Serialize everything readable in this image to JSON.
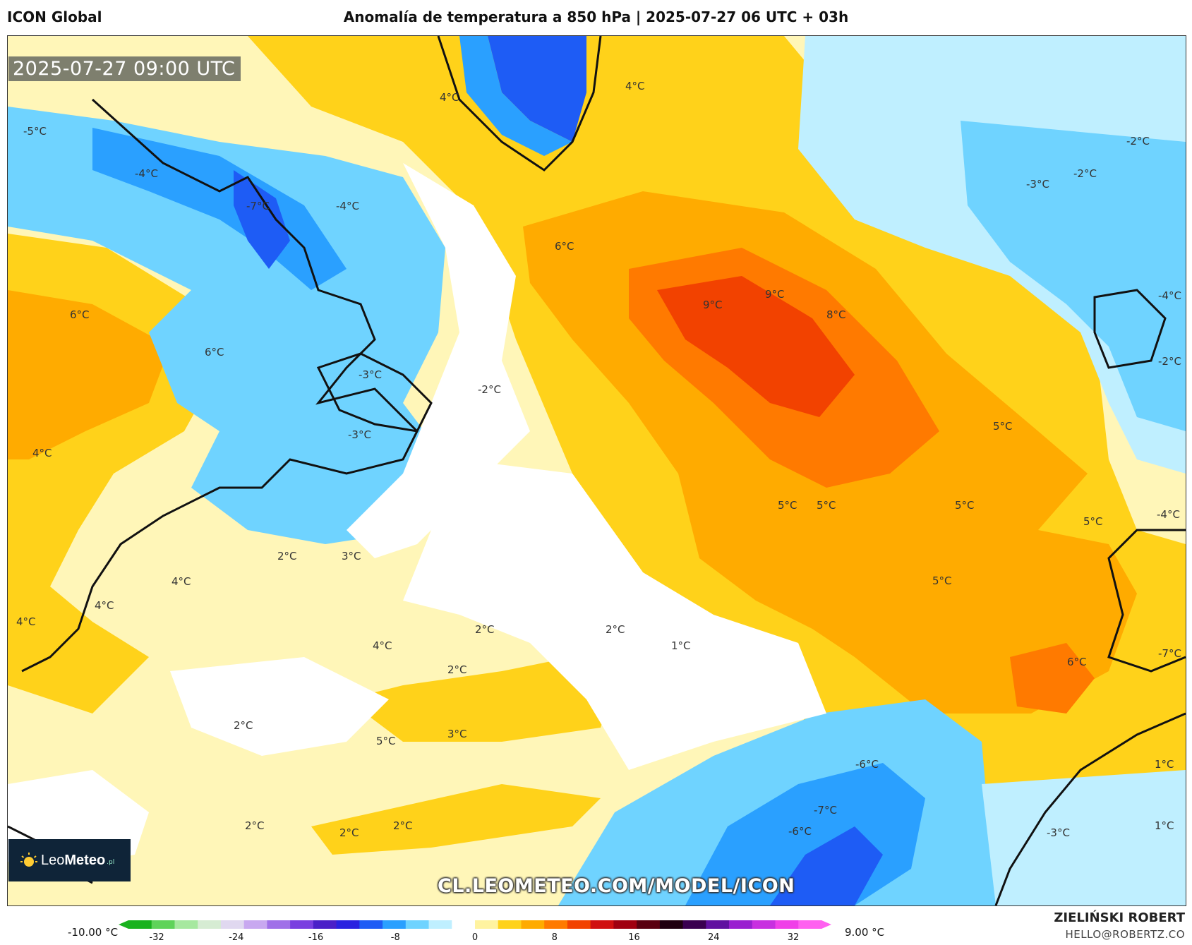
{
  "header": {
    "model": "ICON Global",
    "title": "Anomalía de temperatura a 850 hPa | 2025-07-27 06 UTC + 03h"
  },
  "map": {
    "timestamp": "2025-07-27 09:00 UTC",
    "watermark": "CL.LEOMETEO.COM/MODEL/ICON",
    "labels": [
      "-5°C",
      "-4°C",
      "-7°C",
      "-4°C",
      "4°C",
      "4°C",
      "6°C",
      "6°C",
      "6°C",
      "-3°C",
      "-3°C",
      "-2°C",
      "9°C",
      "9°C",
      "8°C",
      "-2°C",
      "-3°C",
      "-2°C",
      "-4°C",
      "-2°C",
      "5°C",
      "4°C",
      "5°C",
      "5°C",
      "5°C",
      "5°C",
      "-4°C",
      "5°C",
      "2°C",
      "3°C",
      "4°C",
      "4°C",
      "4°C",
      "2°C",
      "2°C",
      "4°C",
      "2°C",
      "1°C",
      "6°C",
      "-7°C",
      "2°C",
      "5°C",
      "3°C",
      "-6°C",
      "-7°C",
      "-6°C",
      "1°C",
      "1°C",
      "-3°C",
      "2°C",
      "2°C",
      "2°C"
    ]
  },
  "logo": {
    "part1": "Leo",
    "part2": "Meteo",
    "suffix": ".pl"
  },
  "legend": {
    "min_label": "-10.00 °C",
    "max_label": "9.00 °C",
    "ticks": [
      "-32",
      "-24",
      "-16",
      "-8",
      "0",
      "8",
      "16",
      "24",
      "32"
    ],
    "colors": [
      "#19b21e",
      "#5fd35a",
      "#a6e89f",
      "#d6ecd3",
      "#e0d8f0",
      "#c8a8f0",
      "#a070e8",
      "#7a3fe0",
      "#4b20c8",
      "#2a22e0",
      "#1e5cf5",
      "#2aa0ff",
      "#6fd3ff",
      "#bfefff",
      "#ffffff",
      "#fff3a0",
      "#ffd21a",
      "#ffab00",
      "#ff7a00",
      "#f24200",
      "#d01010",
      "#a00010",
      "#5a0010",
      "#200010",
      "#3a0050",
      "#6010a0",
      "#9a20d0",
      "#c830e0",
      "#f040e8",
      "#ff60f0"
    ]
  },
  "credits": {
    "author": "ZIELIŃSKI ROBERT",
    "email": "HELLO@ROBERTZ.CO"
  },
  "palette": {
    "cold_deep": "#1e5cf5",
    "cold": "#2aa0ff",
    "cool": "#6fd3ff",
    "cool_light": "#bfefff",
    "neutral": "#ffffff",
    "warm_light": "#fff3a0",
    "warm": "#ffd21a",
    "warmer": "#ffab00",
    "hot": "#ff7a00",
    "hottest": "#f24200",
    "land": "#111111"
  }
}
